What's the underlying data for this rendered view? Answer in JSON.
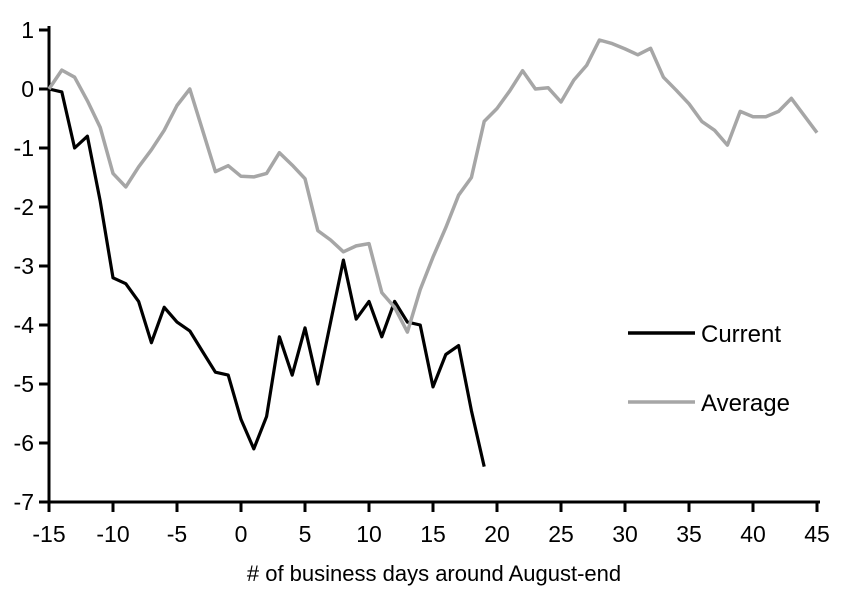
{
  "chart_data": {
    "type": "line",
    "title": "",
    "xlabel": "# of business days around August-end",
    "ylabel": "",
    "xlim": [
      -15,
      45
    ],
    "ylim": [
      -7,
      1
    ],
    "grid": false,
    "legend_position": "middle-right",
    "x_ticks": [
      -15,
      -10,
      -5,
      0,
      5,
      10,
      15,
      20,
      25,
      30,
      35,
      40,
      45
    ],
    "x_tick_labels": [
      "-15",
      "-10",
      "-5",
      "0",
      "5",
      "10",
      "15",
      "20",
      "25",
      "30",
      "35",
      "40",
      "45"
    ],
    "y_ticks": [
      1,
      0,
      -1,
      -2,
      -3,
      -4,
      -5,
      -6,
      -7
    ],
    "y_tick_labels": [
      "1",
      "0",
      "-1",
      "-2",
      "-3",
      "-4",
      "-5",
      "-6",
      "-7"
    ],
    "series": [
      {
        "name": "Current",
        "color": "#000000",
        "stroke_width": 3.2,
        "x": [
          -15,
          -14,
          -13,
          -12,
          -11,
          -10,
          -9,
          -8,
          -7,
          -6,
          -5,
          -4,
          -3,
          -2,
          -1,
          0,
          1,
          2,
          3,
          4,
          5,
          6,
          7,
          8,
          9,
          10,
          11,
          12,
          13,
          14,
          15,
          16,
          17,
          18,
          19
        ],
        "values": [
          0,
          -0.05,
          -1.0,
          -0.8,
          -1.9,
          -3.2,
          -3.3,
          -3.6,
          -4.3,
          -3.7,
          -3.95,
          -4.1,
          -4.45,
          -4.8,
          -4.85,
          -5.6,
          -6.1,
          -5.55,
          -4.2,
          -4.85,
          -4.05,
          -5.0,
          -3.95,
          -2.9,
          -3.9,
          -3.6,
          -4.2,
          -3.6,
          -3.95,
          -4.0,
          -5.05,
          -4.5,
          -4.35,
          -5.45,
          -6.4
        ]
      },
      {
        "name": "Average",
        "color": "#a6a6a6",
        "stroke_width": 3.5,
        "x": [
          -15,
          -14,
          -13,
          -12,
          -11,
          -10,
          -9,
          -8,
          -7,
          -6,
          -5,
          -4,
          -3,
          -2,
          -1,
          0,
          1,
          2,
          3,
          4,
          5,
          6,
          7,
          8,
          9,
          10,
          11,
          12,
          13,
          14,
          15,
          16,
          17,
          18,
          19,
          20,
          21,
          22,
          23,
          24,
          25,
          26,
          27,
          28,
          29,
          30,
          31,
          32,
          33,
          34,
          35,
          36,
          37,
          38,
          39,
          40,
          41,
          42,
          43,
          44,
          45
        ],
        "values": [
          0,
          0.32,
          0.2,
          -0.2,
          -0.65,
          -1.43,
          -1.66,
          -1.32,
          -1.03,
          -0.7,
          -0.28,
          0.0,
          -0.7,
          -1.4,
          -1.3,
          -1.48,
          -1.49,
          -1.43,
          -1.08,
          -1.29,
          -1.52,
          -2.4,
          -2.56,
          -2.76,
          -2.66,
          -2.62,
          -3.45,
          -3.7,
          -4.12,
          -3.4,
          -2.85,
          -2.35,
          -1.8,
          -1.5,
          -0.55,
          -0.33,
          -0.03,
          0.31,
          0.0,
          0.02,
          -0.22,
          0.15,
          0.4,
          0.83,
          0.77,
          0.68,
          0.58,
          0.69,
          0.2,
          -0.02,
          -0.25,
          -0.55,
          -0.7,
          -0.95,
          -0.38,
          -0.47,
          -0.47,
          -0.38,
          -0.16,
          -0.45,
          -0.74
        ]
      }
    ],
    "legend": [
      {
        "label": "Current",
        "color": "#000000"
      },
      {
        "label": "Average",
        "color": "#a6a6a6"
      }
    ],
    "axis_color": "#000000"
  }
}
